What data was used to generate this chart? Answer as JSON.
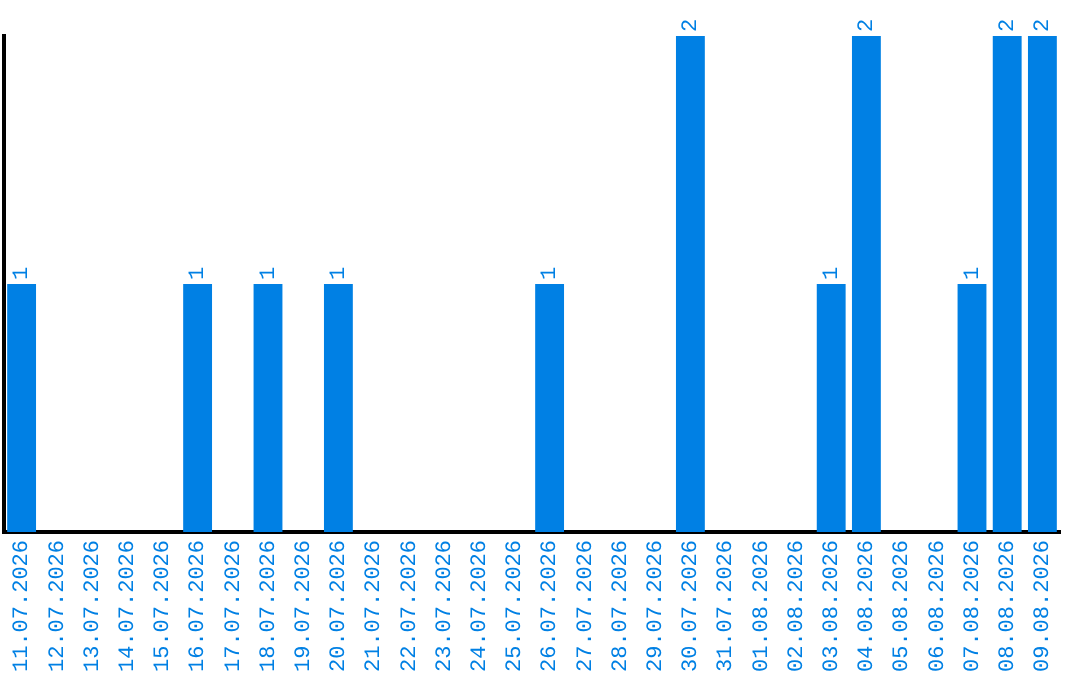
{
  "chart_data": {
    "type": "bar",
    "categories": [
      "11.07.2026",
      "12.07.2026",
      "13.07.2026",
      "14.07.2026",
      "15.07.2026",
      "16.07.2026",
      "17.07.2026",
      "18.07.2026",
      "19.07.2026",
      "20.07.2026",
      "21.07.2026",
      "22.07.2026",
      "23.07.2026",
      "24.07.2026",
      "25.07.2026",
      "26.07.2026",
      "27.07.2026",
      "28.07.2026",
      "29.07.2026",
      "30.07.2026",
      "31.07.2026",
      "01.08.2026",
      "02.08.2026",
      "03.08.2026",
      "04.08.2026",
      "05.08.2026",
      "06.08.2026",
      "07.08.2026",
      "08.08.2026",
      "09.08.2026"
    ],
    "values": [
      1,
      0,
      0,
      0,
      0,
      1,
      0,
      1,
      0,
      1,
      0,
      0,
      0,
      0,
      0,
      1,
      0,
      0,
      0,
      2,
      0,
      0,
      0,
      1,
      2,
      0,
      0,
      1,
      2,
      2
    ],
    "value_labels": [
      "1",
      null,
      null,
      null,
      null,
      "1",
      null,
      "1",
      null,
      "1",
      null,
      null,
      null,
      null,
      null,
      "1",
      null,
      null,
      null,
      "2",
      null,
      null,
      null,
      "1",
      "2",
      null,
      null,
      "1",
      "2",
      "2"
    ],
    "color": "#0080e4",
    "ylim": [
      0,
      2
    ],
    "tick_labels": "x",
    "grid": false,
    "legend": false
  }
}
